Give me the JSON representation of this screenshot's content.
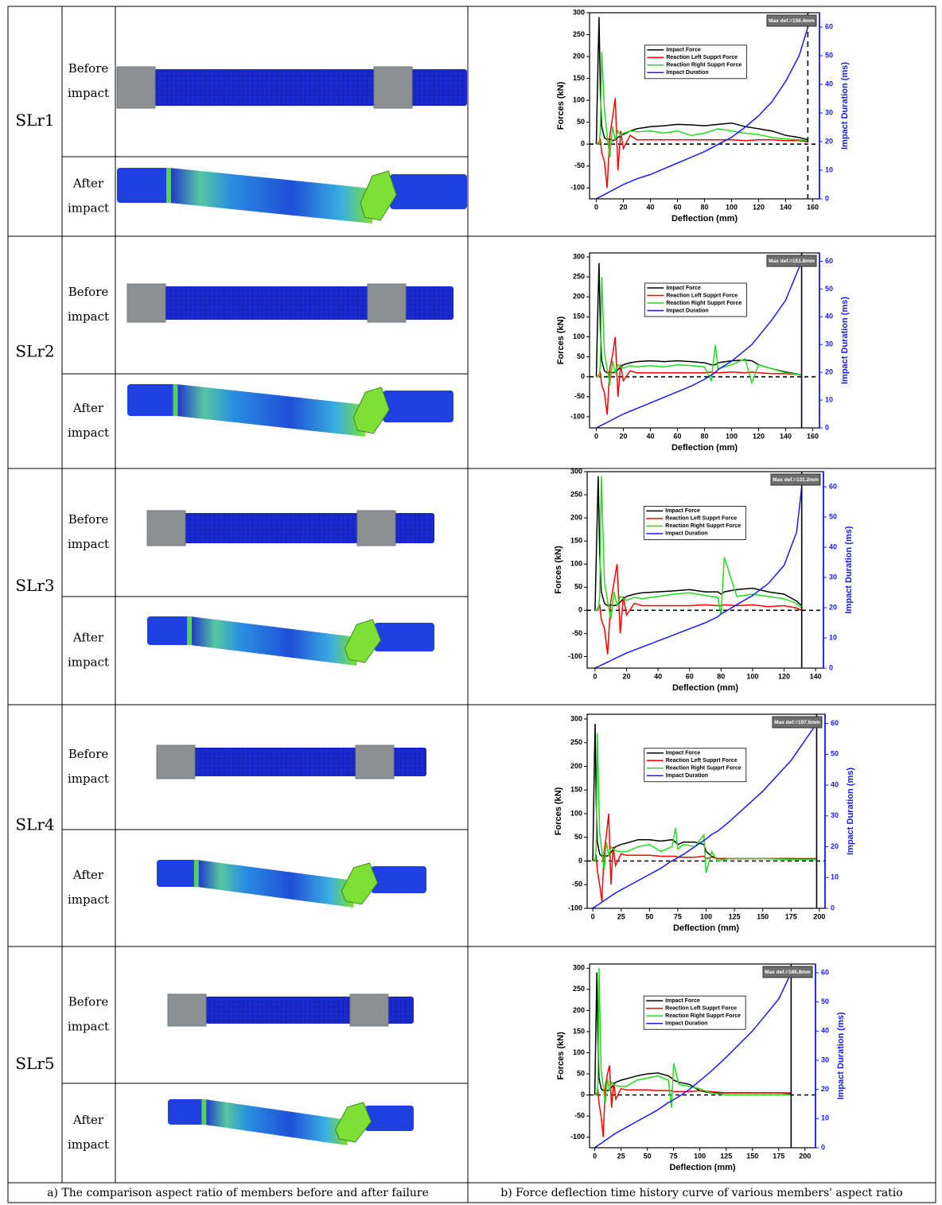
{
  "table": {
    "rows": [
      {
        "label": "SLr1",
        "before": [
          "Before",
          "impact"
        ],
        "after": [
          "After",
          "impact"
        ]
      },
      {
        "label": "SLr2",
        "before": [
          "Before",
          "impact"
        ],
        "after": [
          "After",
          "impact"
        ]
      },
      {
        "label": "SLr3",
        "before": [
          "Before",
          "impact"
        ],
        "after": [
          "After",
          "impact"
        ]
      },
      {
        "label": "SLr4",
        "before": [
          "Before",
          "impact"
        ],
        "after": [
          "After",
          "impact"
        ]
      },
      {
        "label": "SLr5",
        "before": [
          "Before",
          "impact"
        ],
        "after": [
          "After",
          "impact"
        ]
      }
    ],
    "captions": [
      "a) The comparison aspect ratio of members before and after failure",
      "b) Force deflection time history curve of various members' aspect ratio"
    ]
  },
  "chart_data": [
    {
      "type": "line",
      "x_label": "Deflection (mm)",
      "y_label": "Forces (kN)",
      "y2_label": "Impact Duration (ms)",
      "x": [
        0,
        1,
        2,
        3,
        4,
        6,
        8,
        10,
        12,
        14,
        16,
        18,
        20,
        25,
        30,
        40,
        50,
        60,
        70,
        80,
        90,
        100,
        110,
        120,
        130,
        140,
        150,
        156.4
      ],
      "series": [
        {
          "name": "Impact Force",
          "color": "#000000",
          "values": [
            0,
            150,
            290,
            120,
            40,
            15,
            10,
            12,
            8,
            10,
            15,
            20,
            22,
            30,
            35,
            40,
            42,
            45,
            44,
            42,
            45,
            48,
            40,
            35,
            30,
            20,
            15,
            10
          ]
        },
        {
          "name": "Reaction Left Supprt Force",
          "color": "#ff0000",
          "values": [
            0,
            0,
            5,
            10,
            -20,
            -40,
            -100,
            20,
            60,
            105,
            -60,
            30,
            -10,
            20,
            10,
            10,
            10,
            10,
            10,
            10,
            10,
            10,
            8,
            10,
            10,
            8,
            8,
            5
          ]
        },
        {
          "name": "Reaction Right Supprt Force",
          "color": "#22dd22",
          "values": [
            0,
            0,
            0,
            30,
            210,
            80,
            20,
            -30,
            40,
            10,
            30,
            20,
            25,
            30,
            28,
            30,
            25,
            30,
            20,
            25,
            35,
            30,
            25,
            22,
            15,
            12,
            10,
            8
          ]
        },
        {
          "name": "Impact Duration",
          "color": "#1a1aff",
          "axis": "y2",
          "values": [
            0,
            0.3,
            0.5,
            0.8,
            1,
            1.5,
            2,
            2.5,
            3,
            3.5,
            4,
            4.5,
            5,
            6,
            7,
            8.5,
            10.5,
            12.5,
            14.5,
            16.5,
            19,
            21.5,
            25,
            29,
            34,
            41,
            50,
            60
          ]
        }
      ],
      "xlim": [
        -5,
        165
      ],
      "xticks": [
        0,
        20,
        40,
        60,
        80,
        100,
        120,
        140,
        160
      ],
      "ylim": [
        -125,
        300
      ],
      "yticks": [
        -100,
        -50,
        0,
        50,
        100,
        150,
        200,
        250,
        300
      ],
      "y2lim": [
        0,
        65
      ],
      "y2ticks": [
        0,
        10,
        20,
        30,
        40,
        50,
        60
      ],
      "annotation": {
        "value": 156.4,
        "label": "Max def.=156.4mm",
        "dashed": true
      }
    },
    {
      "type": "line",
      "x_label": "Deflection (mm)",
      "y_label": "Forces (kN)",
      "y2_label": "Impact Duration (ms)",
      "x": [
        0,
        1,
        2,
        3,
        4,
        6,
        8,
        10,
        12,
        14,
        16,
        18,
        20,
        25,
        30,
        40,
        50,
        60,
        70,
        80,
        85,
        88,
        90,
        100,
        110,
        115,
        120,
        130,
        140,
        151.8
      ],
      "series": [
        {
          "name": "Impact Force",
          "color": "#000000",
          "values": [
            0,
            150,
            285,
            120,
            40,
            15,
            10,
            12,
            10,
            12,
            18,
            25,
            30,
            35,
            38,
            40,
            38,
            40,
            38,
            35,
            30,
            30,
            35,
            40,
            42,
            40,
            30,
            20,
            12,
            5
          ]
        },
        {
          "name": "Reaction Left Supprt Force",
          "color": "#ff0000",
          "values": [
            0,
            0,
            5,
            10,
            -20,
            -40,
            -95,
            20,
            55,
            100,
            -50,
            30,
            -10,
            15,
            10,
            10,
            10,
            10,
            10,
            10,
            12,
            10,
            10,
            12,
            10,
            12,
            10,
            8,
            8,
            5
          ]
        },
        {
          "name": "Reaction Right Supprt Force",
          "color": "#22dd22",
          "values": [
            0,
            0,
            0,
            30,
            250,
            60,
            20,
            -20,
            40,
            10,
            30,
            25,
            22,
            28,
            25,
            28,
            25,
            30,
            28,
            25,
            -10,
            80,
            20,
            30,
            45,
            -15,
            30,
            20,
            10,
            5
          ]
        },
        {
          "name": "Impact Duration",
          "color": "#1a1aff",
          "axis": "y2",
          "values": [
            0,
            0.3,
            0.5,
            0.8,
            1,
            1.5,
            2,
            2.5,
            3,
            3.5,
            4,
            4.5,
            5,
            6,
            7,
            9,
            11,
            13,
            15,
            17.5,
            19,
            20,
            21,
            24,
            28,
            30,
            33,
            39,
            46,
            60
          ]
        }
      ],
      "xlim": [
        -5,
        165
      ],
      "xticks": [
        0,
        20,
        40,
        60,
        80,
        100,
        120,
        140,
        160
      ],
      "ylim": [
        -128,
        310
      ],
      "yticks": [
        -100,
        -50,
        0,
        50,
        100,
        150,
        200,
        250,
        300
      ],
      "y2lim": [
        0,
        63
      ],
      "y2ticks": [
        0,
        10,
        20,
        30,
        40,
        50,
        60
      ],
      "annotation": {
        "value": 151.8,
        "label": "Max def.=151.8mm"
      }
    },
    {
      "type": "line",
      "x_label": "Deflection (mm)",
      "y_label": "Forces (kN)",
      "y2_label": "Impact Duration (ms)",
      "x": [
        0,
        1,
        2,
        3,
        4,
        6,
        8,
        10,
        12,
        14,
        16,
        18,
        20,
        25,
        30,
        40,
        50,
        60,
        70,
        78,
        80,
        82,
        90,
        100,
        110,
        120,
        128,
        131.2
      ],
      "series": [
        {
          "name": "Impact Force",
          "color": "#000000",
          "values": [
            0,
            150,
            290,
            120,
            40,
            15,
            10,
            12,
            10,
            12,
            18,
            25,
            30,
            35,
            38,
            40,
            42,
            45,
            40,
            40,
            35,
            40,
            45,
            48,
            40,
            35,
            20,
            10
          ]
        },
        {
          "name": "Reaction Left Supprt Force",
          "color": "#ff0000",
          "values": [
            0,
            0,
            5,
            10,
            -20,
            -40,
            -95,
            20,
            60,
            100,
            -50,
            30,
            -10,
            15,
            10,
            10,
            10,
            10,
            12,
            10,
            10,
            12,
            10,
            12,
            8,
            10,
            5,
            0
          ]
        },
        {
          "name": "Reaction Right Supprt Force",
          "color": "#22dd22",
          "values": [
            0,
            0,
            0,
            30,
            290,
            60,
            20,
            -20,
            40,
            10,
            30,
            25,
            22,
            28,
            25,
            30,
            35,
            38,
            32,
            28,
            -10,
            115,
            30,
            35,
            30,
            25,
            15,
            5
          ]
        },
        {
          "name": "Impact Duration",
          "color": "#1a1aff",
          "axis": "y2",
          "values": [
            0,
            0.3,
            0.5,
            0.8,
            1,
            1.5,
            2,
            2.5,
            3,
            3.5,
            4,
            4.5,
            5,
            6,
            7,
            9,
            11,
            13,
            15,
            17,
            18,
            18.5,
            21,
            24,
            28,
            34,
            45,
            60
          ]
        }
      ],
      "xlim": [
        -5,
        145
      ],
      "xticks": [
        0,
        20,
        40,
        60,
        80,
        100,
        120,
        140
      ],
      "ylim": [
        -125,
        300
      ],
      "yticks": [
        -100,
        -50,
        0,
        50,
        100,
        150,
        200,
        250,
        300
      ],
      "y2lim": [
        0,
        65
      ],
      "y2ticks": [
        0,
        10,
        20,
        30,
        40,
        50,
        60
      ],
      "annotation": {
        "value": 131.2,
        "label": "Max def.=131.2mm"
      }
    },
    {
      "type": "line",
      "x_label": "Deflection (mm)",
      "y_label": "Forces (kN)",
      "y2_label": "Impact Duration (ms)",
      "x": [
        0,
        1,
        2,
        3,
        4,
        6,
        8,
        10,
        12,
        14,
        16,
        18,
        20,
        25,
        30,
        40,
        50,
        60,
        70,
        73,
        75,
        80,
        90,
        98,
        100,
        105,
        110,
        120,
        150,
        175,
        197.6
      ],
      "series": [
        {
          "name": "Impact Force",
          "color": "#000000",
          "values": [
            0,
            150,
            290,
            120,
            40,
            15,
            10,
            12,
            10,
            12,
            18,
            25,
            30,
            35,
            38,
            45,
            45,
            42,
            45,
            40,
            35,
            40,
            40,
            35,
            20,
            10,
            5,
            5,
            5,
            5,
            3
          ]
        },
        {
          "name": "Reaction Left Supprt Force",
          "color": "#ff0000",
          "values": [
            0,
            0,
            5,
            10,
            -20,
            -50,
            -85,
            20,
            55,
            100,
            -50,
            30,
            -10,
            15,
            12,
            12,
            12,
            10,
            10,
            10,
            8,
            8,
            8,
            10,
            5,
            8,
            5,
            5,
            5,
            5,
            5
          ]
        },
        {
          "name": "Reaction Right Supprt Force",
          "color": "#22dd22",
          "values": [
            0,
            0,
            0,
            30,
            270,
            60,
            20,
            -20,
            40,
            10,
            30,
            25,
            22,
            20,
            20,
            30,
            35,
            20,
            30,
            70,
            25,
            35,
            30,
            55,
            -25,
            20,
            0,
            5,
            5,
            3,
            3
          ]
        },
        {
          "name": "Impact Duration",
          "color": "#1a1aff",
          "axis": "y2",
          "values": [
            0,
            0.3,
            0.5,
            0.8,
            1,
            1.5,
            2,
            2.5,
            3,
            3.5,
            4,
            4.5,
            5,
            6,
            7,
            9,
            11,
            13,
            15.5,
            16,
            16.5,
            17.5,
            20,
            22,
            22.5,
            24,
            25,
            28,
            38,
            48,
            60
          ]
        }
      ],
      "xlim": [
        -5,
        205
      ],
      "xticks": [
        0,
        25,
        50,
        75,
        100,
        125,
        150,
        175,
        200
      ],
      "ylim": [
        -100,
        310
      ],
      "yticks": [
        -100,
        -50,
        0,
        50,
        100,
        150,
        200,
        250,
        300
      ],
      "y2lim": [
        0,
        63
      ],
      "y2ticks": [
        0,
        10,
        20,
        30,
        40,
        50,
        60
      ],
      "annotation": {
        "value": 197.6,
        "label": "Max def.=197.6mm"
      }
    },
    {
      "type": "line",
      "x_label": "Deflection (mm)",
      "y_label": "Forces (kN)",
      "y2_label": "Impact Duration (ms)",
      "x": [
        0,
        1,
        2,
        3,
        4,
        6,
        8,
        10,
        12,
        14,
        16,
        18,
        20,
        25,
        30,
        40,
        50,
        60,
        70,
        73,
        75,
        80,
        90,
        100,
        110,
        125,
        150,
        175,
        186.8
      ],
      "series": [
        {
          "name": "Impact Force",
          "color": "#000000",
          "values": [
            0,
            150,
            290,
            120,
            40,
            15,
            10,
            12,
            10,
            12,
            18,
            25,
            30,
            35,
            38,
            45,
            50,
            52,
            45,
            40,
            35,
            30,
            25,
            10,
            5,
            5,
            5,
            5,
            3
          ]
        },
        {
          "name": "Reaction Left Supprt Force",
          "color": "#ff0000",
          "values": [
            0,
            0,
            5,
            10,
            -20,
            -50,
            -100,
            20,
            50,
            70,
            -30,
            30,
            -10,
            15,
            12,
            12,
            12,
            10,
            10,
            10,
            8,
            8,
            8,
            10,
            8,
            5,
            5,
            5,
            5
          ]
        },
        {
          "name": "Reaction Right Supprt Force",
          "color": "#22dd22",
          "values": [
            0,
            0,
            0,
            30,
            300,
            60,
            20,
            -20,
            40,
            10,
            30,
            25,
            22,
            20,
            20,
            35,
            40,
            45,
            35,
            -30,
            75,
            25,
            20,
            15,
            5,
            0,
            0,
            0,
            0
          ]
        },
        {
          "name": "Impact Duration",
          "color": "#1a1aff",
          "axis": "y2",
          "values": [
            0,
            0.3,
            0.5,
            0.8,
            1,
            1.5,
            2,
            2.5,
            3,
            3.5,
            4,
            4.5,
            5,
            6,
            7,
            9,
            11,
            13,
            15.5,
            16,
            16.5,
            17.5,
            20,
            23,
            26,
            31,
            40,
            51,
            60
          ]
        }
      ],
      "xlim": [
        -5,
        210
      ],
      "xticks": [
        0,
        25,
        50,
        75,
        100,
        125,
        150,
        175,
        200
      ],
      "ylim": [
        -125,
        310
      ],
      "yticks": [
        -100,
        -50,
        0,
        50,
        100,
        150,
        200,
        250,
        300
      ],
      "y2lim": [
        0,
        63
      ],
      "y2ticks": [
        0,
        10,
        20,
        30,
        40,
        50,
        60
      ],
      "annotation": {
        "value": 186.8,
        "label": "Max def.=186.8mm"
      }
    }
  ]
}
